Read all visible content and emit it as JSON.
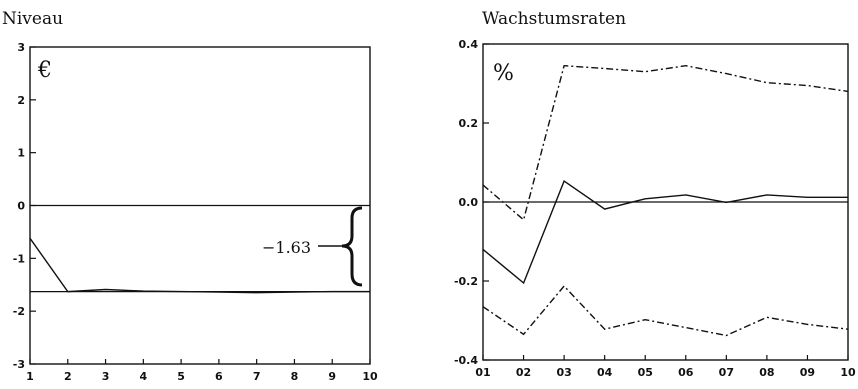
{
  "chart_data": [
    {
      "type": "line",
      "title": "Niveau",
      "unit_label": "€",
      "x": [
        1,
        2,
        3,
        4,
        5,
        6,
        7,
        8,
        9,
        10
      ],
      "x_ticks": [
        "1",
        "2",
        "3",
        "4",
        "5",
        "6",
        "7",
        "8",
        "9",
        "10"
      ],
      "y_ticks": [
        "3",
        "2",
        "1",
        "0",
        "-1",
        "-2",
        "-3"
      ],
      "ylim": [
        -3,
        3
      ],
      "xlim": [
        1,
        10
      ],
      "series": [
        {
          "values": [
            -0.62,
            -1.63,
            -1.59,
            -1.62,
            -1.63,
            -1.64,
            -1.65,
            -1.64,
            -1.63,
            -1.63
          ],
          "style": "solid"
        }
      ],
      "reference_lines": [
        0,
        -1.63
      ],
      "annotation": {
        "text": "−1.63",
        "from": 0,
        "to": -1.63
      }
    },
    {
      "type": "line",
      "title": "Wachstumsraten",
      "unit_label": "%",
      "x": [
        "01",
        "02",
        "03",
        "04",
        "05",
        "06",
        "07",
        "08",
        "09",
        "10"
      ],
      "x_ticks": [
        "01",
        "02",
        "03",
        "04",
        "05",
        "06",
        "07",
        "08",
        "09",
        "10"
      ],
      "y_ticks": [
        "0.4",
        "0.2",
        "0.0",
        "-0.2",
        "-0.4"
      ],
      "ylim": [
        -0.4,
        0.4
      ],
      "series": [
        {
          "values": [
            -0.12,
            -0.205,
            0.053,
            -0.018,
            0.008,
            0.018,
            -0.001,
            0.018,
            0.012,
            0.012
          ],
          "style": "solid"
        },
        {
          "values": [
            0.043,
            -0.045,
            0.345,
            0.338,
            0.33,
            0.345,
            0.325,
            0.302,
            0.295,
            0.28
          ],
          "style": "dashdot"
        },
        {
          "values": [
            -0.265,
            -0.335,
            -0.213,
            -0.322,
            -0.298,
            -0.318,
            -0.338,
            -0.292,
            -0.31,
            -0.322
          ],
          "style": "dashdot"
        }
      ],
      "reference_lines": [
        0
      ]
    }
  ]
}
